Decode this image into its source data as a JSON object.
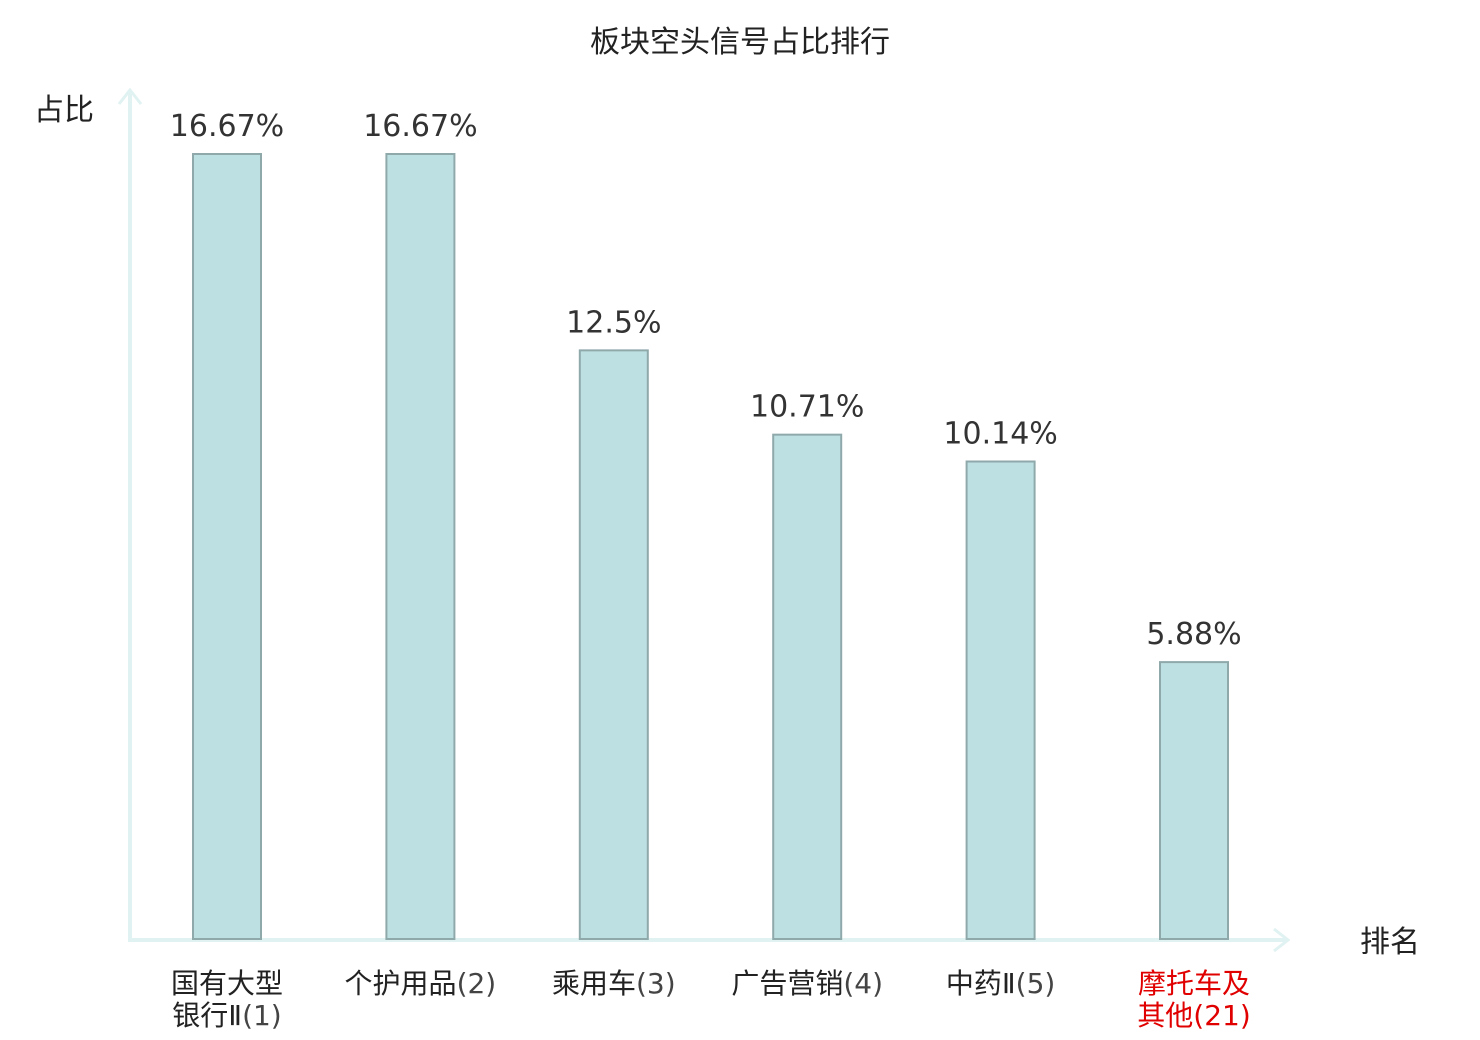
{
  "chart_data": {
    "type": "bar",
    "title": "板块空头信号占比排行",
    "ylabel": "占比",
    "xlabel": "排名",
    "ylim": [
      0,
      20
    ],
    "grid": false,
    "categories": [
      {
        "lines": [
          "国有大型",
          "银行Ⅱ"
        ],
        "rank": "(1)",
        "highlight": false
      },
      {
        "lines": [
          "个护用品"
        ],
        "rank": "(2)",
        "highlight": false
      },
      {
        "lines": [
          "乘用车"
        ],
        "rank": "(3)",
        "highlight": false
      },
      {
        "lines": [
          "广告营销"
        ],
        "rank": "(4)",
        "highlight": false
      },
      {
        "lines": [
          "中药Ⅱ"
        ],
        "rank": "(5)",
        "highlight": false
      },
      {
        "lines": [
          "摩托车及",
          "其他"
        ],
        "rank": "(21)",
        "highlight": true
      }
    ],
    "values": [
      16.67,
      16.67,
      12.5,
      10.71,
      10.14,
      5.88
    ],
    "value_labels": [
      "16.67%",
      "16.67%",
      "12.5%",
      "10.71%",
      "10.14%",
      "5.88%"
    ],
    "colors": {
      "bar_fill": "#bde0e3",
      "bar_stroke": "#8fa9ab",
      "axis": "#e0f2f1",
      "text": "#222222",
      "highlight_text": "#e00000"
    }
  }
}
